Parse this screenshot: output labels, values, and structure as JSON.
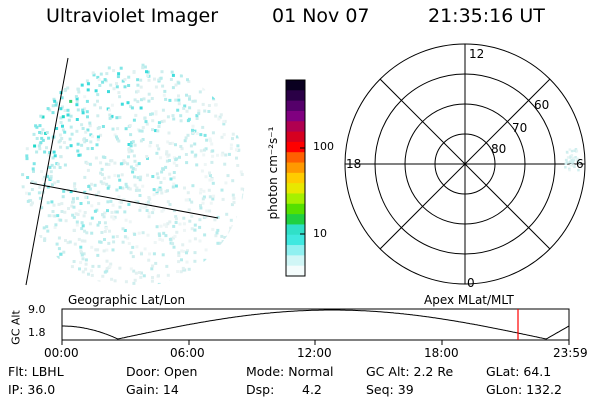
{
  "header": {
    "instrument": "Ultraviolet Imager",
    "date": "01 Nov 07",
    "time": "21:35:16 UT"
  },
  "colorbar": {
    "label": "photon cm⁻²s⁻¹",
    "ticks": [
      "100",
      "10"
    ],
    "colors": [
      "#0a0020",
      "#2a0046",
      "#55006a",
      "#800080",
      "#b00050",
      "#d60020",
      "#ff0000",
      "#ff6000",
      "#ff9900",
      "#ffcc00",
      "#e8e800",
      "#a6f000",
      "#55e000",
      "#20d040",
      "#30e0c8",
      "#40e8e0",
      "#90f0f0",
      "#d0f6f6",
      "#f4fcfc"
    ]
  },
  "polar_plot": {
    "mlt_labels": {
      "top": "12",
      "left": "18",
      "right": "6",
      "bottom": "0"
    },
    "lat_labels": [
      "60",
      "70",
      "80"
    ]
  },
  "timeline": {
    "ylabel": "GC Alt",
    "ymax": "9.0",
    "ymin": "1.8",
    "left_title": "Geographic Lat/Lon",
    "right_title": "Apex MLat/MLT",
    "time_ticks": [
      "00:00",
      "06:00",
      "12:00",
      "18:00",
      "23:59"
    ]
  },
  "footer": {
    "row1": {
      "filter": "Flt: LBHL",
      "door": "Door: Open",
      "mode": "Mode: Normal",
      "gc_alt": "GC Alt: 2.2 Re",
      "glat": "GLat:  64.1"
    },
    "row2": {
      "ip": "IP: 36.0",
      "gain": "Gain: 14",
      "dsp_label": "Dsp:",
      "dsp_value": "4.2",
      "seq": "Seq: 39",
      "glon": "GLon: 132.2"
    }
  }
}
